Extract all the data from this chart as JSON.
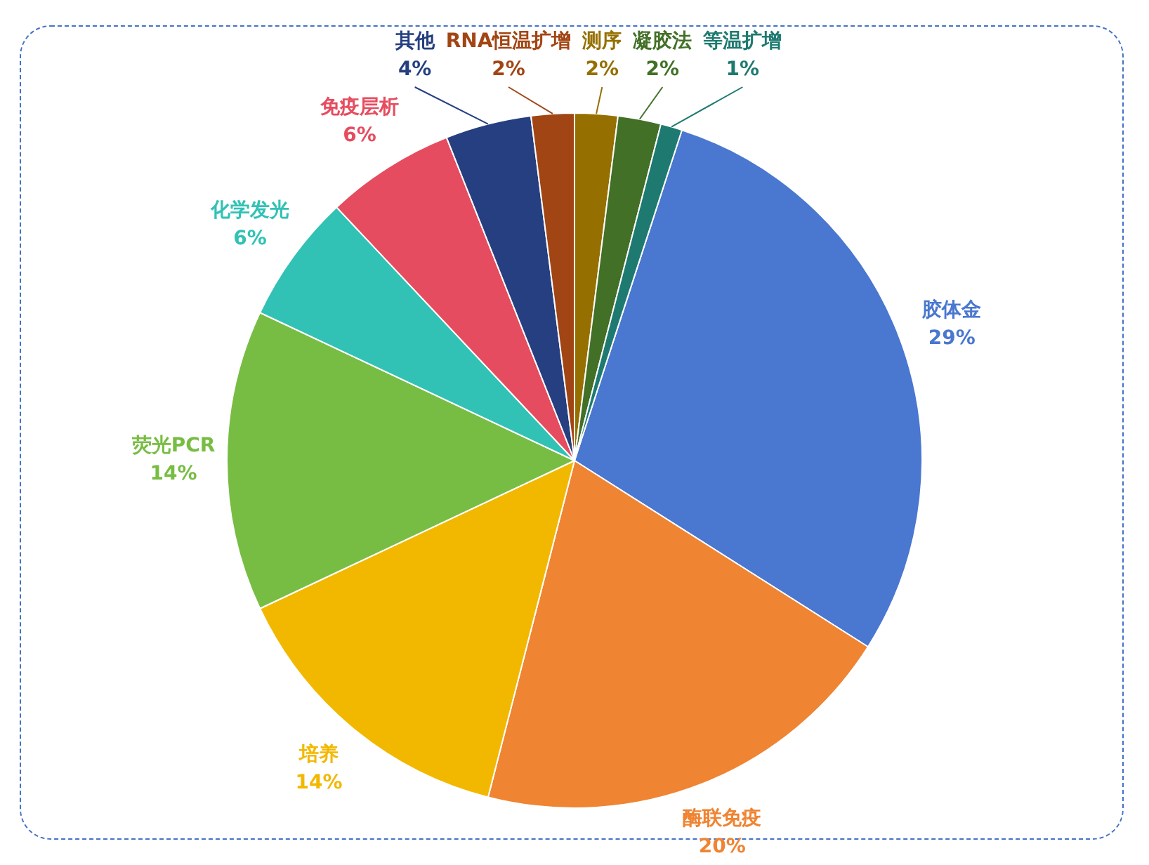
{
  "chart_data": {
    "type": "pie",
    "categories": [
      "胶体金",
      "酶联免疫",
      "培养",
      "荧光PCR",
      "化学发光",
      "免疫层析",
      "其他",
      "RNA恒温扩增",
      "测序",
      "凝胶法",
      "等温扩增"
    ],
    "values": [
      29,
      20,
      14,
      14,
      6,
      6,
      4,
      2,
      2,
      2,
      1
    ],
    "colors": [
      "#4a77cf",
      "#ef8432",
      "#f2b800",
      "#78bd43",
      "#31c2b5",
      "#e64c5f",
      "#253f80",
      "#a24514",
      "#957000",
      "#427027",
      "#1e7a70"
    ],
    "value_labels": [
      "29%",
      "20%",
      "14%",
      "14%",
      "6%",
      "6%",
      "4%",
      "2%",
      "2%",
      "2%",
      "1%"
    ]
  }
}
